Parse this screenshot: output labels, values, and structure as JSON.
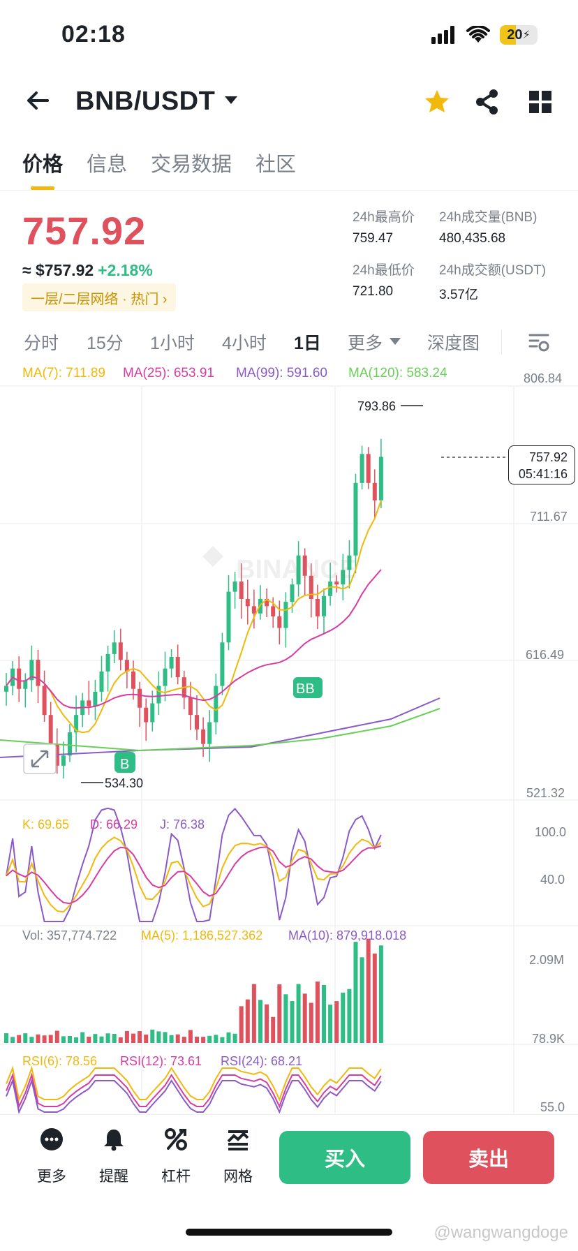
{
  "status": {
    "time": "02:18",
    "battery": "20"
  },
  "header": {
    "pair": "BNB/USDT"
  },
  "tabs": [
    {
      "label": "价格",
      "active": true
    },
    {
      "label": "信息",
      "active": false
    },
    {
      "label": "交易数据",
      "active": false
    },
    {
      "label": "社区",
      "active": false
    }
  ],
  "ticker": {
    "price": "757.92",
    "usd_price": "≈ $757.92",
    "change": "+2.18%",
    "tag": "一层/二层网络 · 热门 ›",
    "high_label": "24h最高价",
    "high": "759.47",
    "low_label": "24h最低价",
    "low": "721.80",
    "vol_bnb_label": "24h成交量(BNB)",
    "vol_bnb": "480,435.68",
    "vol_usdt_label": "24h成交额(USDT)",
    "vol_usdt": "3.57亿"
  },
  "intervals": [
    {
      "label": "分时",
      "active": false
    },
    {
      "label": "15分",
      "active": false
    },
    {
      "label": "1小时",
      "active": false
    },
    {
      "label": "4小时",
      "active": false
    },
    {
      "label": "1日",
      "active": true
    },
    {
      "label": "更多",
      "active": false
    },
    {
      "label": "深度图",
      "active": false
    }
  ],
  "ma": {
    "ma7": "MA(7): 711.89",
    "ma25": "MA(25): 653.91",
    "ma99": "MA(99): 591.60",
    "ma120": "MA(120): 583.24"
  },
  "price_axis": {
    "p1": "806.84",
    "p2": "711.67",
    "p3": "616.49",
    "p4": "521.32"
  },
  "markers": {
    "high": "793.86",
    "low": "534.30",
    "last_price": "757.92",
    "countdown": "05:41:16",
    "buy_flag": "B",
    "buy_flag2": "BB"
  },
  "watermark_logo": "BINANCE",
  "kdj": {
    "k": "K: 69.65",
    "d": "D: 66.29",
    "j": "J: 76.38",
    "axis_hi": "100.0",
    "axis_lo": "40.0"
  },
  "volume": {
    "vol": "Vol: 357,774.722",
    "ma5": "MA(5): 1,186,527.362",
    "ma10": "MA(10): 879,918.018",
    "axis_hi": "2.09M",
    "axis_lo": "78.9K"
  },
  "rsi": {
    "rsi6": "RSI(6): 78.56",
    "rsi12": "RSI(12): 73.61",
    "rsi24": "RSI(24): 68.21",
    "axis": "55.0"
  },
  "bottom_nav": [
    {
      "label": "更多",
      "icon": "more-icon"
    },
    {
      "label": "提醒",
      "icon": "bell-icon"
    },
    {
      "label": "杠杆",
      "icon": "percent-icon"
    },
    {
      "label": "网格",
      "icon": "grid-trading-icon"
    }
  ],
  "actions": {
    "buy": "买入",
    "sell": "卖出"
  },
  "credit": "@wangwangdoge",
  "colors": {
    "up": "#2ebd85",
    "down": "#e0515e",
    "accent": "#f0b90b",
    "ma7": "#f0b90b",
    "ma25": "#d63ca3",
    "ma99": "#8a5ac8",
    "ma120": "#67cf56"
  }
}
